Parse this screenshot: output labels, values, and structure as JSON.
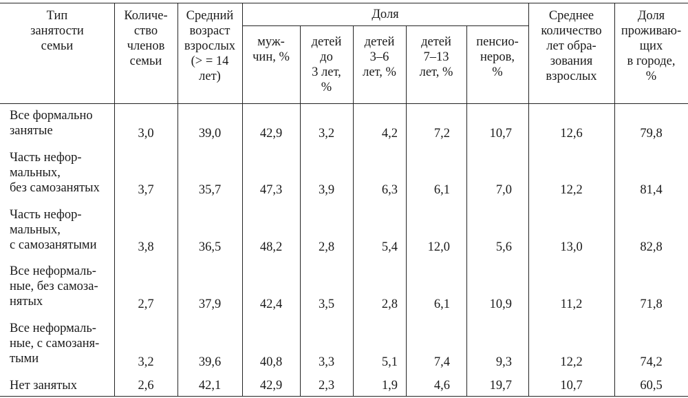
{
  "header": {
    "type_col": "Тип\nзанятости\nсемьи",
    "members": "Количе-\nство\nчленов\nсемьи",
    "age": "Средний\nвозраст\nвзрослых\n(> = 14\nлет)",
    "share_group": "Доля",
    "men": "муж-\nчин, %",
    "kids_under3": "детей\nдо\n3 лет,\n%",
    "kids_3_6": "детей\n3–6\nлет, %",
    "kids_7_13": "детей\n7–13\nлет, %",
    "pensioners": "пенсио-\nнеров,\n%",
    "education": "Среднее\nколичество\nлет обра-\nзования\nвзрослых",
    "urban": "Доля\nпроживаю-\nщих\nв городе,\n%"
  },
  "rows": [
    {
      "label": "Все формально\nзанятые",
      "members": "3,0",
      "age": "39,0",
      "men": "42,9",
      "kids_under3": "3,2",
      "kids_3_6": "4,2",
      "kids_7_13": "7,2",
      "pensioners": "10,7",
      "education": "12,6",
      "urban": "79,8"
    },
    {
      "label": "Часть нефор-\nмальных,\nбез самозанятых",
      "members": "3,7",
      "age": "35,7",
      "men": "47,3",
      "kids_under3": "3,9",
      "kids_3_6": "6,3",
      "kids_7_13": "6,1",
      "pensioners": "7,0",
      "education": "12,2",
      "urban": "81,4"
    },
    {
      "label": "Часть нефор-\nмальных,\nс самозанятыми",
      "members": "3,8",
      "age": "36,5",
      "men": "48,2",
      "kids_under3": "2,8",
      "kids_3_6": "5,4",
      "kids_7_13": "12,0",
      "pensioners": "5,6",
      "education": "13,0",
      "urban": "82,8"
    },
    {
      "label": "Все неформаль-\nные, без самоза-\nнятых",
      "members": "2,7",
      "age": "37,9",
      "men": "42,4",
      "kids_under3": "3,5",
      "kids_3_6": "2,8",
      "kids_7_13": "6,1",
      "pensioners": "10,9",
      "education": "11,2",
      "urban": "71,8"
    },
    {
      "label": "Все неформаль-\nные, с самозаня-\nтыми",
      "members": "3,2",
      "age": "39,6",
      "men": "40,8",
      "kids_under3": "3,3",
      "kids_3_6": "5,1",
      "kids_7_13": "7,4",
      "pensioners": "9,3",
      "education": "12,2",
      "urban": "74,2"
    },
    {
      "label": "Нет занятых",
      "members": "2,6",
      "age": "42,1",
      "men": "42,9",
      "kids_under3": "2,3",
      "kids_3_6": "1,9",
      "kids_7_13": "4,6",
      "pensioners": "19,7",
      "education": "10,7",
      "urban": "60,5"
    }
  ]
}
